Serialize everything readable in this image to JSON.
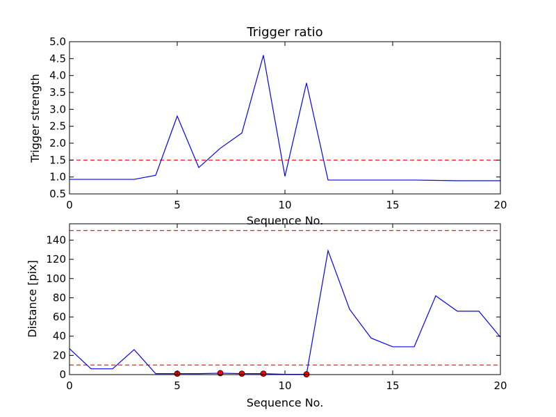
{
  "chart_data": [
    {
      "type": "line",
      "title": "Trigger ratio",
      "xlabel": "Sequence No.",
      "ylabel": "Trigger strength",
      "xlim": [
        0,
        20
      ],
      "ylim": [
        0.5,
        5.0
      ],
      "xticks": [
        0,
        5,
        10,
        15,
        20
      ],
      "xtick_labels": [
        "0",
        "5",
        "10",
        "15",
        "20"
      ],
      "yticks": [
        0.5,
        1.0,
        1.5,
        2.0,
        2.5,
        3.0,
        3.5,
        4.0,
        4.5,
        5.0
      ],
      "ytick_labels": [
        "0.5",
        "1.0",
        "1.5",
        "2.0",
        "2.5",
        "3.0",
        "3.5",
        "4.0",
        "4.5",
        "5.0"
      ],
      "grid": false,
      "series": [
        {
          "color": "#0000ff",
          "style": "solid",
          "x": [
            0,
            1,
            2,
            3,
            4,
            5,
            6,
            7,
            8,
            9,
            10,
            11,
            12,
            13,
            14,
            15,
            16,
            17,
            18,
            19,
            20
          ],
          "y": [
            0.93,
            0.93,
            0.93,
            0.93,
            1.05,
            2.8,
            1.28,
            1.85,
            2.3,
            4.6,
            1.02,
            3.78,
            0.91,
            0.91,
            0.91,
            0.91,
            0.91,
            0.9,
            0.89,
            0.89,
            0.89
          ]
        }
      ],
      "reference_lines": [
        {
          "y": 1.5,
          "color": "#ff0000",
          "style": "dashed"
        }
      ]
    },
    {
      "type": "line",
      "title": "",
      "xlabel": "Sequence No.",
      "ylabel": "Distance [pix]",
      "xlim": [
        0,
        20
      ],
      "ylim": [
        0,
        157
      ],
      "xticks": [
        0,
        5,
        10,
        15,
        20
      ],
      "xtick_labels": [
        "0",
        "5",
        "10",
        "15",
        "20"
      ],
      "yticks": [
        0,
        20,
        40,
        60,
        80,
        100,
        120,
        140
      ],
      "ytick_labels": [
        "0",
        "20",
        "40",
        "60",
        "80",
        "100",
        "120",
        "140"
      ],
      "grid": false,
      "series": [
        {
          "color": "#0000ff",
          "style": "solid",
          "x": [
            0,
            1,
            2,
            3,
            4,
            5,
            6,
            7,
            8,
            9,
            10,
            11,
            12,
            13,
            14,
            15,
            16,
            17,
            18,
            19,
            20
          ],
          "y": [
            27,
            6,
            6,
            26,
            1,
            1,
            1,
            1.5,
            1,
            1,
            0.3,
            0.3,
            129,
            68,
            38,
            29,
            29,
            82,
            66,
            66,
            39
          ]
        }
      ],
      "markers": {
        "color": "#ff0000",
        "x": [
          5,
          7,
          8,
          9,
          11
        ],
        "y": [
          1,
          1.5,
          1,
          1,
          0.3
        ]
      },
      "reference_lines": [
        {
          "y": 10,
          "color": "#ff0000",
          "style": "dashed"
        },
        {
          "y": 150,
          "color": "#ff0000",
          "style": "dashed"
        }
      ]
    }
  ]
}
